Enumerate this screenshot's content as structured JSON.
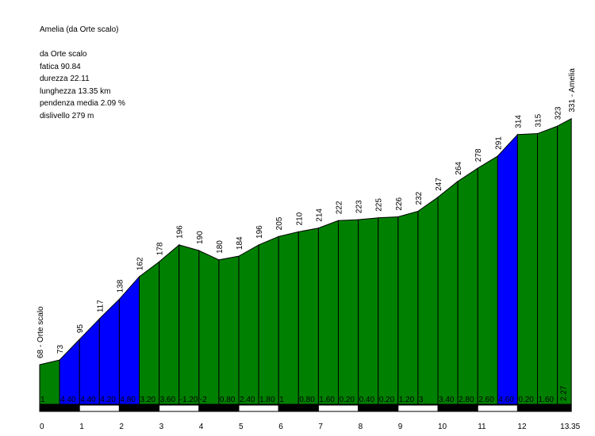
{
  "info": {
    "title": "Amelia (da Orte scalo)",
    "lines": [
      "da Orte scalo",
      "fatica 90.84",
      "durezza 22.11",
      "lunghezza 13.35 km",
      "pendenza media 2.09 %",
      "dislivello 279 m"
    ]
  },
  "chart_data": {
    "type": "area",
    "xlabel": "",
    "ylabel": "",
    "x_unit": "km",
    "y_unit": "m",
    "xlim": [
      0,
      13.35
    ],
    "x_ticks": [
      "0",
      "1",
      "2",
      "3",
      "4",
      "5",
      "6",
      "7",
      "8",
      "9",
      "10",
      "11",
      "12",
      "13.35"
    ],
    "x": [
      0,
      0.5,
      1,
      1.5,
      2,
      2.5,
      3,
      3.5,
      4,
      4.5,
      5,
      5.5,
      6,
      6.5,
      7,
      7.5,
      8,
      8.5,
      9,
      9.5,
      10,
      10.5,
      11,
      11.5,
      12,
      12.5,
      13,
      13.35
    ],
    "elevation": [
      68,
      73,
      95,
      117,
      138,
      162,
      178,
      196,
      190,
      180,
      184,
      196,
      205,
      210,
      214,
      222,
      223,
      225,
      226,
      232,
      247,
      264,
      278,
      291,
      314,
      315,
      323,
      331
    ],
    "point_labels": [
      "68 - Orte scalo",
      "73",
      "95",
      "117",
      "138",
      "162",
      "178",
      "196",
      "190",
      "180",
      "184",
      "196",
      "205",
      "210",
      "214",
      "222",
      "223",
      "225",
      "226",
      "232",
      "247",
      "264",
      "278",
      "291",
      "314",
      "315",
      "323",
      "331 - Amelia"
    ],
    "gradient_labels": [
      "1",
      "4.40",
      "4.40",
      "4.20",
      "4.80",
      "3.20",
      "3.60",
      "-1.20",
      "-2",
      "0.80",
      "2.40",
      "1.80",
      "1",
      "0.80",
      "1.60",
      "0.20",
      "0.40",
      "0.20",
      "1.20",
      "3",
      "3.40",
      "2.80",
      "2.60",
      "4.60",
      "0.20",
      "1.60",
      "2.27"
    ],
    "segment_colors": [
      "#008000",
      "#0000ff",
      "#0000ff",
      "#0000ff",
      "#0000ff",
      "#008000",
      "#008000",
      "#008000",
      "#008000",
      "#008000",
      "#008000",
      "#008000",
      "#008000",
      "#008000",
      "#008000",
      "#008000",
      "#008000",
      "#008000",
      "#008000",
      "#008000",
      "#008000",
      "#008000",
      "#008000",
      "#0000ff",
      "#008000",
      "#008000",
      "#008000"
    ],
    "grid": false,
    "legend": "none"
  }
}
